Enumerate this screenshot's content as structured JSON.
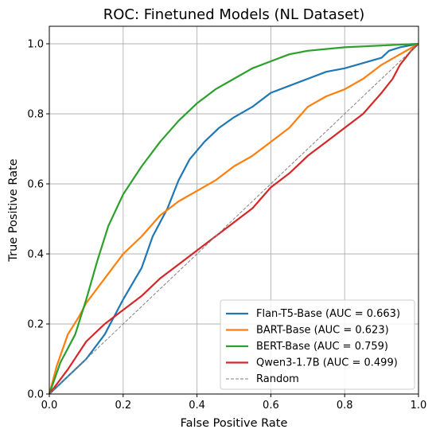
{
  "chart_data": {
    "type": "line",
    "title": "ROC: Finetuned Models (NL Dataset)",
    "xlabel": "False Positive Rate",
    "ylabel": "True Positive Rate",
    "xlim": [
      0.0,
      1.0
    ],
    "ylim": [
      0.0,
      1.05
    ],
    "xticks": [
      "0.0",
      "0.2",
      "0.4",
      "0.6",
      "0.8",
      "1.0"
    ],
    "yticks": [
      "0.0",
      "0.2",
      "0.4",
      "0.6",
      "0.8",
      "1.0"
    ],
    "grid": true,
    "legend_position": "lower-right",
    "series": [
      {
        "name": "Flan-T5-Base (AUC = 0.663)",
        "color": "#1f77b4",
        "style": "solid",
        "points": [
          [
            0,
            0
          ],
          [
            0.05,
            0.05
          ],
          [
            0.1,
            0.1
          ],
          [
            0.15,
            0.17
          ],
          [
            0.2,
            0.27
          ],
          [
            0.25,
            0.36
          ],
          [
            0.28,
            0.45
          ],
          [
            0.32,
            0.53
          ],
          [
            0.35,
            0.61
          ],
          [
            0.38,
            0.67
          ],
          [
            0.42,
            0.72
          ],
          [
            0.46,
            0.76
          ],
          [
            0.5,
            0.79
          ],
          [
            0.55,
            0.82
          ],
          [
            0.6,
            0.86
          ],
          [
            0.65,
            0.88
          ],
          [
            0.7,
            0.9
          ],
          [
            0.75,
            0.92
          ],
          [
            0.8,
            0.93
          ],
          [
            0.85,
            0.945
          ],
          [
            0.9,
            0.96
          ],
          [
            0.92,
            0.98
          ],
          [
            0.95,
            0.99
          ],
          [
            1.0,
            1.0
          ]
        ]
      },
      {
        "name": "BART-Base (AUC = 0.623)",
        "color": "#ff7f0e",
        "style": "solid",
        "points": [
          [
            0,
            0
          ],
          [
            0.02,
            0.08
          ],
          [
            0.05,
            0.17
          ],
          [
            0.08,
            0.22
          ],
          [
            0.1,
            0.26
          ],
          [
            0.15,
            0.33
          ],
          [
            0.2,
            0.4
          ],
          [
            0.25,
            0.45
          ],
          [
            0.3,
            0.51
          ],
          [
            0.35,
            0.55
          ],
          [
            0.4,
            0.58
          ],
          [
            0.45,
            0.61
          ],
          [
            0.5,
            0.65
          ],
          [
            0.55,
            0.68
          ],
          [
            0.6,
            0.72
          ],
          [
            0.65,
            0.76
          ],
          [
            0.7,
            0.82
          ],
          [
            0.75,
            0.85
          ],
          [
            0.8,
            0.87
          ],
          [
            0.85,
            0.9
          ],
          [
            0.9,
            0.94
          ],
          [
            0.95,
            0.97
          ],
          [
            1.0,
            1.0
          ]
        ]
      },
      {
        "name": "BERT-Base (AUC = 0.759)",
        "color": "#2ca02c",
        "style": "solid",
        "points": [
          [
            0,
            0
          ],
          [
            0.03,
            0.09
          ],
          [
            0.07,
            0.17
          ],
          [
            0.1,
            0.27
          ],
          [
            0.13,
            0.38
          ],
          [
            0.16,
            0.48
          ],
          [
            0.2,
            0.57
          ],
          [
            0.25,
            0.65
          ],
          [
            0.3,
            0.72
          ],
          [
            0.35,
            0.78
          ],
          [
            0.4,
            0.83
          ],
          [
            0.45,
            0.87
          ],
          [
            0.5,
            0.9
          ],
          [
            0.55,
            0.93
          ],
          [
            0.6,
            0.95
          ],
          [
            0.65,
            0.97
          ],
          [
            0.7,
            0.98
          ],
          [
            0.8,
            0.99
          ],
          [
            0.9,
            0.995
          ],
          [
            1.0,
            1.0
          ]
        ]
      },
      {
        "name": "Qwen3-1.7B (AUC = 0.499)",
        "color": "#d62728",
        "style": "solid",
        "points": [
          [
            0,
            0
          ],
          [
            0.05,
            0.07
          ],
          [
            0.1,
            0.15
          ],
          [
            0.15,
            0.2
          ],
          [
            0.2,
            0.24
          ],
          [
            0.25,
            0.28
          ],
          [
            0.3,
            0.33
          ],
          [
            0.35,
            0.37
          ],
          [
            0.4,
            0.41
          ],
          [
            0.45,
            0.45
          ],
          [
            0.5,
            0.49
          ],
          [
            0.55,
            0.53
          ],
          [
            0.6,
            0.59
          ],
          [
            0.65,
            0.63
          ],
          [
            0.7,
            0.68
          ],
          [
            0.75,
            0.72
          ],
          [
            0.8,
            0.76
          ],
          [
            0.85,
            0.8
          ],
          [
            0.9,
            0.86
          ],
          [
            0.93,
            0.9
          ],
          [
            0.95,
            0.94
          ],
          [
            0.98,
            0.98
          ],
          [
            1.0,
            1.0
          ]
        ]
      },
      {
        "name": "Random",
        "color": "#808080",
        "style": "dashed",
        "points": [
          [
            0,
            0
          ],
          [
            1,
            1
          ]
        ]
      }
    ]
  }
}
